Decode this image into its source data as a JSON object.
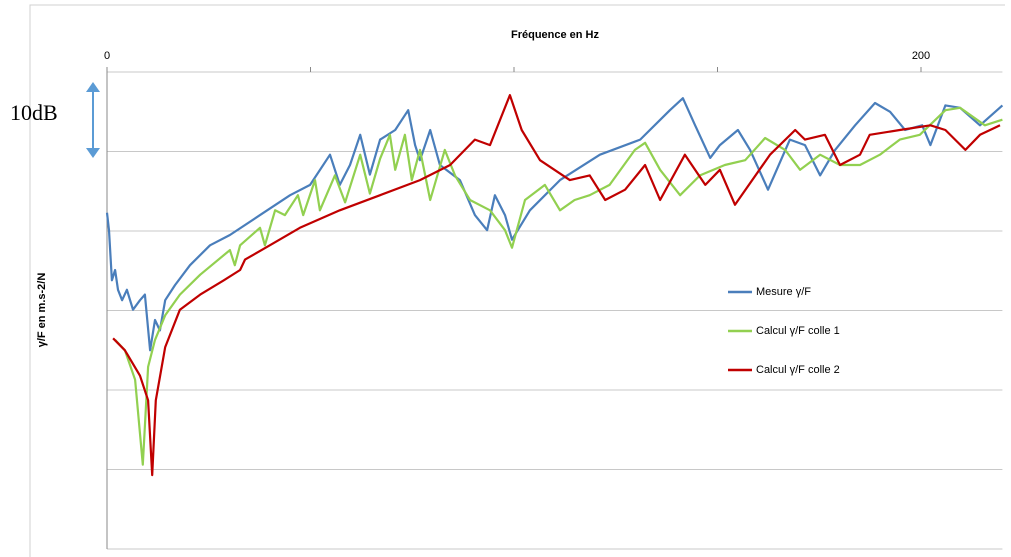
{
  "chart_data": {
    "type": "line",
    "x_label": "Fréquence en Hz",
    "y_label": "γ/F en m.s-2/N",
    "annotation": "10dB",
    "xlim": [
      0,
      220
    ],
    "xticks": [
      0,
      200
    ],
    "xminor": [
      50,
      100,
      150
    ],
    "ylim": [
      -60,
      0
    ],
    "yticks": [
      0,
      -10,
      -20,
      -30,
      -40,
      -50,
      -60
    ],
    "grid": true,
    "legend": "right",
    "series": [
      {
        "name": "Mesure γ/F",
        "color": "#4a7ebb",
        "x": [
          0,
          0.5,
          1.2,
          2,
          2.7,
          3.7,
          4.9,
          6.4,
          8.1,
          9.3,
          10.6,
          11.8,
          13,
          14.3,
          16.7,
          20.4,
          25.3,
          30.2,
          37.6,
          45,
          49.9,
          54.8,
          57.2,
          59.7,
          62.2,
          64.6,
          67.1,
          70.8,
          74,
          75.7,
          76.9,
          79.4,
          81.8,
          86.7,
          90.4,
          93.4,
          95.3,
          97.8,
          99.5,
          103.9,
          111.3,
          121.1,
          131,
          138.3,
          141.5,
          144.5,
          148.2,
          150.6,
          155,
          158,
          162.4,
          167.8,
          171.5,
          175.2,
          178.9,
          183.8,
          188.7,
          192.4,
          196.1,
          200.3,
          202.3,
          206,
          209.6,
          214.5,
          220
        ],
        "values": [
          -17.7,
          -19.9,
          -26.2,
          -24.9,
          -27.4,
          -28.7,
          -27.4,
          -29.9,
          -28.7,
          -28,
          -35,
          -31.2,
          -32.5,
          -28.7,
          -26.8,
          -24.3,
          -21.8,
          -20.5,
          -18,
          -15.5,
          -14.2,
          -10.4,
          -14.2,
          -11.7,
          -7.9,
          -12.9,
          -8.5,
          -7.3,
          -4.8,
          -9.2,
          -11.1,
          -7.3,
          -11.7,
          -13.6,
          -18,
          -19.9,
          -15.5,
          -18,
          -21.1,
          -17.4,
          -13.6,
          -10.4,
          -8.5,
          -4.8,
          -3.3,
          -6.7,
          -10.8,
          -9.2,
          -7.3,
          -9.8,
          -14.8,
          -8.5,
          -9.2,
          -13,
          -9.8,
          -6.7,
          -3.9,
          -5,
          -7.3,
          -6.7,
          -9.2,
          -4.2,
          -4.5,
          -6.7,
          -4.2
        ]
      },
      {
        "name": "Calcul γ/F colle  1",
        "color": "#92d050",
        "x": [
          2,
          4.4,
          6.9,
          8.8,
          10.1,
          11.8,
          14.3,
          17.9,
          22.9,
          30.2,
          31.4,
          32.7,
          37.6,
          38.8,
          41.3,
          43.7,
          46.9,
          48.2,
          51.1,
          52.3,
          56,
          58.5,
          62.2,
          64.6,
          67.1,
          69.5,
          70.8,
          73.2,
          74.9,
          76.9,
          79.4,
          83,
          85.5,
          89.2,
          94.1,
          97.8,
          99.5,
          102.7,
          107.6,
          111.3,
          114.9,
          118.6,
          123.5,
          129.7,
          132.2,
          135.9,
          140.8,
          145.7,
          151.8,
          156.8,
          161.7,
          166.6,
          170.3,
          175.2,
          180.1,
          185,
          189.9,
          194.8,
          199.7,
          206,
          209.6,
          215.7,
          220
        ],
        "values": [
          -33.7,
          -35,
          -38.7,
          -49.4,
          -37.1,
          -33.7,
          -30.6,
          -28,
          -25.5,
          -22.4,
          -24.3,
          -21.8,
          -19.6,
          -21.8,
          -17.4,
          -18,
          -15.5,
          -18,
          -13.6,
          -17.4,
          -13,
          -16.4,
          -10.4,
          -15.3,
          -10.9,
          -7.9,
          -12.3,
          -7.9,
          -13.6,
          -9.8,
          -16.1,
          -9.8,
          -13,
          -16.1,
          -17.4,
          -19.9,
          -22.1,
          -16.1,
          -14.2,
          -17.4,
          -16.1,
          -15.5,
          -14.2,
          -9.8,
          -8.9,
          -12.3,
          -15.5,
          -13,
          -11.7,
          -11.1,
          -8.3,
          -9.8,
          -12.3,
          -10.4,
          -11.7,
          -11.7,
          -10.4,
          -8.5,
          -7.9,
          -4.8,
          -4.5,
          -6.7,
          -6
        ]
      },
      {
        "name": "Calcul γ/F colle 2",
        "color": "#c00000",
        "x": [
          1.5,
          4.4,
          8.1,
          10.1,
          11.1,
          12,
          14.3,
          17.9,
          22.9,
          28.7,
          32.7,
          33.9,
          40,
          47.4,
          57.2,
          67.1,
          76.9,
          84.3,
          90.4,
          94.1,
          99,
          101.9,
          106.4,
          113.7,
          118.6,
          122.4,
          127.3,
          132.2,
          135.9,
          142,
          147,
          150.6,
          154.3,
          162.9,
          169.1,
          171.5,
          176.4,
          180.1,
          185,
          187.4,
          194.8,
          202.3,
          206,
          210.9,
          214.5,
          219.4
        ],
        "values": [
          -33.5,
          -35,
          -38.2,
          -41.3,
          -50.7,
          -41.3,
          -34.6,
          -29.9,
          -28,
          -26.2,
          -24.9,
          -23.6,
          -21.8,
          -19.6,
          -17.4,
          -15.5,
          -13.6,
          -11.7,
          -8.5,
          -9.2,
          -2.9,
          -7.3,
          -11.1,
          -13.6,
          -13,
          -16.1,
          -14.8,
          -11.7,
          -16.1,
          -10.4,
          -14.2,
          -12.3,
          -16.7,
          -10.4,
          -7.3,
          -8.5,
          -7.9,
          -11.7,
          -10.4,
          -7.9,
          -7.3,
          -6.7,
          -7.3,
          -9.8,
          -7.9,
          -6.7
        ]
      }
    ]
  }
}
